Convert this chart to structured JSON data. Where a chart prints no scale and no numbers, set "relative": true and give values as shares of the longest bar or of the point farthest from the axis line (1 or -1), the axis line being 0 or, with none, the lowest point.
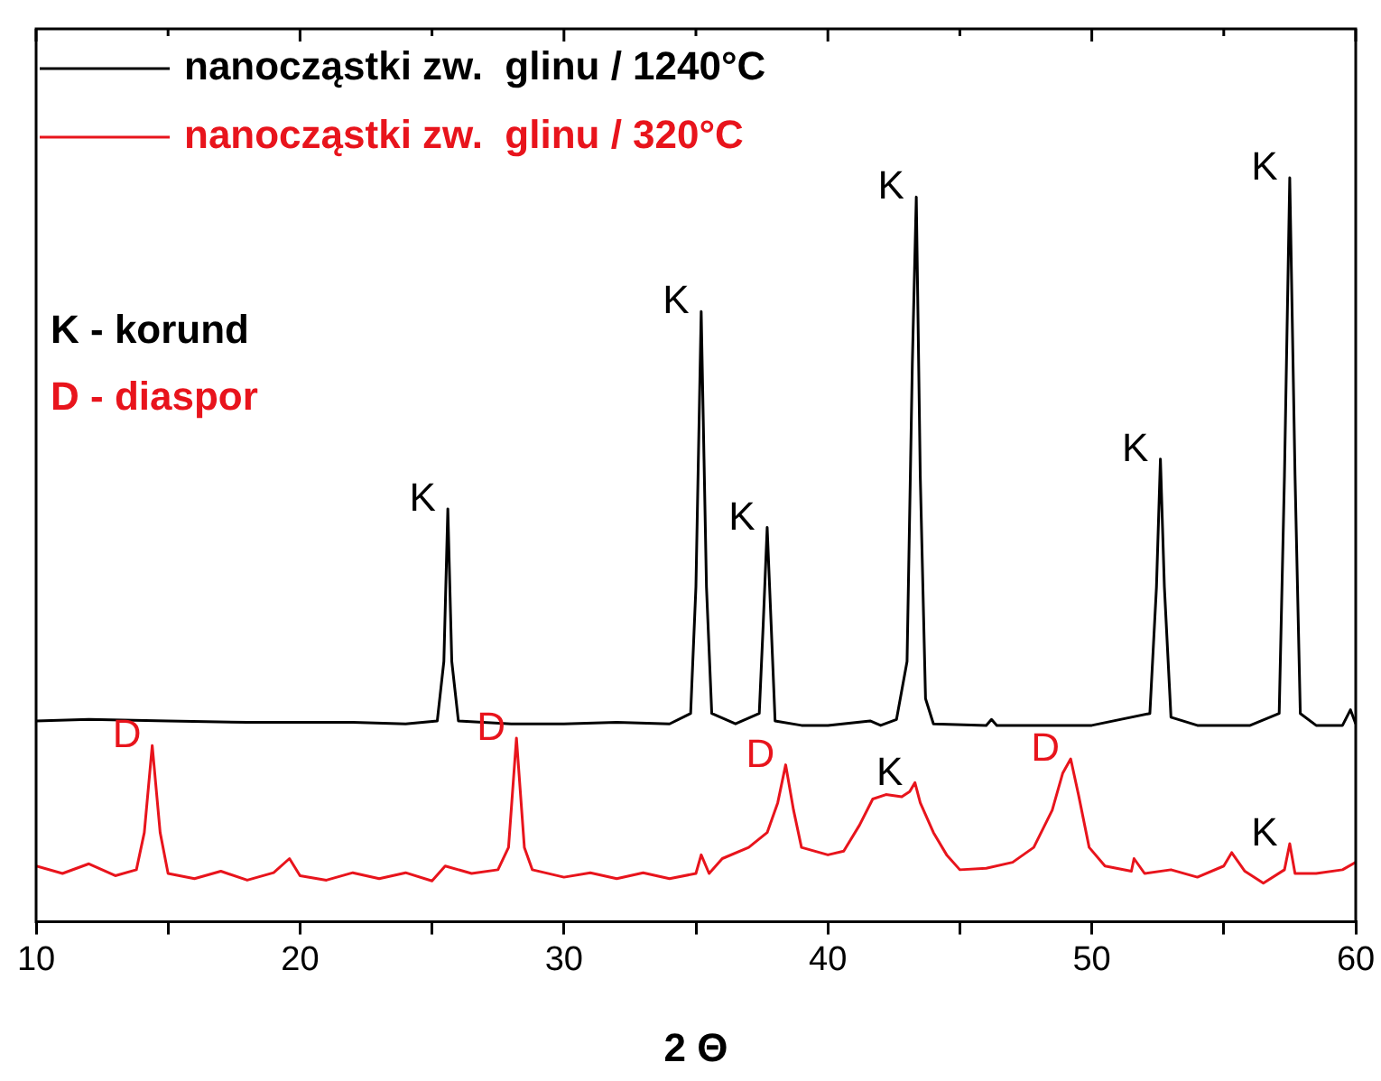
{
  "chart_data": {
    "type": "line",
    "xlabel": "2 Θ",
    "relative": true,
    "legend": "top left",
    "marker": "none",
    "grid": false,
    "xlim": [
      10,
      60
    ],
    "xticks": [
      10,
      {
        "value": 15,
        "label": null
      },
      20,
      {
        "value": 25,
        "label": null
      },
      30,
      {
        "value": 35,
        "label": null
      },
      40,
      {
        "value": 45,
        "label": null
      },
      50,
      {
        "value": 55,
        "label": null
      },
      60
    ],
    "series": [
      {
        "name": "nanocząstki zw.  glinu / 1240°C",
        "color": "#000000",
        "x": [
          10,
          12,
          15,
          18,
          20,
          22,
          24,
          25.2,
          25.45,
          25.6,
          25.75,
          26,
          28,
          30,
          32,
          34,
          34.8,
          35.0,
          35.2,
          35.4,
          35.6,
          36.5,
          37.4,
          37.55,
          37.7,
          37.85,
          38,
          39,
          40,
          41.6,
          42,
          42.6,
          43.0,
          43.2,
          43.35,
          43.5,
          43.7,
          44,
          46,
          46.2,
          46.4,
          48,
          50,
          52.2,
          52.45,
          52.6,
          52.75,
          53,
          54,
          56,
          57.1,
          57.3,
          57.5,
          57.7,
          57.9,
          58.5,
          59.5,
          59.8,
          60
        ],
        "values": [
          0.27,
          0.272,
          0.27,
          0.268,
          0.268,
          0.268,
          0.266,
          0.27,
          0.35,
          0.555,
          0.35,
          0.27,
          0.266,
          0.266,
          0.268,
          0.266,
          0.28,
          0.45,
          0.82,
          0.45,
          0.28,
          0.266,
          0.28,
          0.4,
          0.53,
          0.4,
          0.27,
          0.264,
          0.264,
          0.27,
          0.264,
          0.272,
          0.35,
          0.75,
          0.974,
          0.6,
          0.3,
          0.266,
          0.264,
          0.272,
          0.264,
          0.264,
          0.264,
          0.28,
          0.45,
          0.622,
          0.45,
          0.275,
          0.264,
          0.264,
          0.28,
          0.6,
          1.0,
          0.6,
          0.28,
          0.264,
          0.264,
          0.285,
          0.266
        ]
      },
      {
        "name": "nanocząstki zw.  glinu / 320°C",
        "color": "#e8141c",
        "x": [
          10,
          11,
          12,
          13,
          13.8,
          14.1,
          14.4,
          14.7,
          15,
          16,
          17,
          18,
          19,
          19.6,
          20,
          21,
          22,
          23,
          24,
          25,
          25.5,
          26.5,
          27.5,
          27.9,
          28.2,
          28.5,
          28.8,
          30,
          31,
          32,
          33,
          34,
          35,
          35.2,
          35.5,
          36,
          37,
          37.7,
          38.1,
          38.4,
          38.7,
          39,
          40,
          40.6,
          41.2,
          41.7,
          42.2,
          42.8,
          43.1,
          43.3,
          43.5,
          44,
          44.5,
          45,
          46,
          47,
          47.8,
          48.5,
          48.9,
          49.2,
          49.5,
          49.9,
          50.5,
          51.5,
          51.6,
          52,
          53,
          54,
          55,
          55.3,
          55.8,
          56.5,
          57.3,
          57.5,
          57.7,
          58.5,
          59.5,
          60
        ],
        "values": [
          0.075,
          0.065,
          0.078,
          0.062,
          0.07,
          0.12,
          0.237,
          0.12,
          0.065,
          0.058,
          0.068,
          0.056,
          0.066,
          0.085,
          0.062,
          0.056,
          0.066,
          0.058,
          0.066,
          0.055,
          0.075,
          0.065,
          0.07,
          0.1,
          0.247,
          0.1,
          0.07,
          0.06,
          0.066,
          0.058,
          0.066,
          0.058,
          0.065,
          0.09,
          0.065,
          0.085,
          0.1,
          0.12,
          0.16,
          0.211,
          0.15,
          0.1,
          0.09,
          0.095,
          0.13,
          0.165,
          0.171,
          0.168,
          0.175,
          0.187,
          0.16,
          0.12,
          0.09,
          0.07,
          0.072,
          0.08,
          0.1,
          0.15,
          0.2,
          0.219,
          0.17,
          0.1,
          0.075,
          0.068,
          0.085,
          0.065,
          0.07,
          0.06,
          0.075,
          0.093,
          0.068,
          0.052,
          0.07,
          0.105,
          0.065,
          0.065,
          0.07,
          0.08
        ]
      }
    ],
    "annotations": [
      "K - korund",
      "D - diaspor",
      {
        "text": "K",
        "x": 25.6,
        "y": 0.555
      },
      {
        "text": "K",
        "x": 35.2,
        "y": 0.82
      },
      {
        "text": "K",
        "x": 37.7,
        "y": 0.53
      },
      {
        "text": "K",
        "x": 43.35,
        "y": 0.974
      },
      {
        "text": "K",
        "x": 52.6,
        "y": 0.622
      },
      {
        "text": "K",
        "x": 57.5,
        "y": 1.0
      },
      {
        "text": "D",
        "x": 14.4,
        "y": 0.237
      },
      {
        "text": "D",
        "x": 28.2,
        "y": 0.247
      },
      {
        "text": "D",
        "x": 38.4,
        "y": 0.211
      },
      {
        "text": "K",
        "x": 43.3,
        "y": 0.187
      },
      {
        "text": "D",
        "x": 49.2,
        "y": 0.219
      },
      {
        "text": "K",
        "x": 57.5,
        "y": 0.105
      }
    ]
  }
}
